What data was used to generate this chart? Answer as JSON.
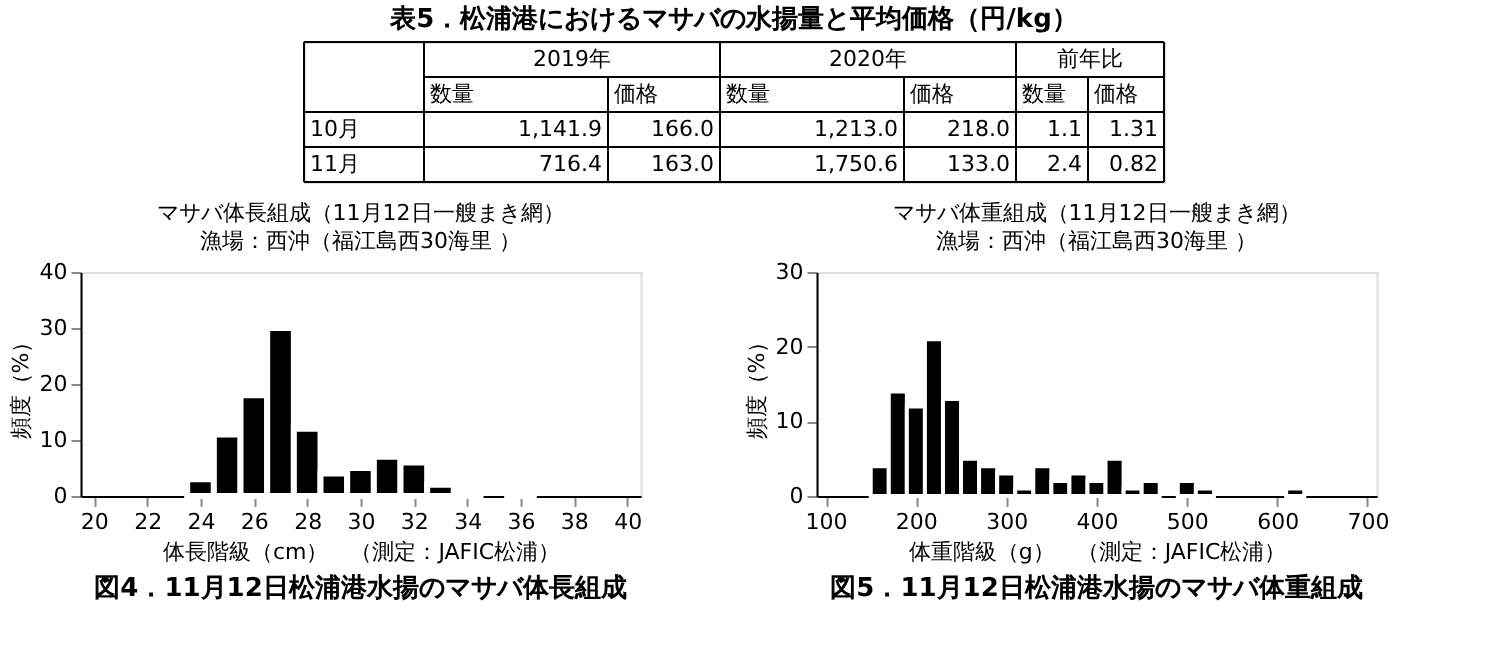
{
  "chart_data": [
    {
      "type": "other",
      "title": "表5．松浦港におけるマサバの水揚量と平均価格（円/kg）",
      "annotations": [
        "2019年",
        "2020年",
        "前年比",
        "数量",
        "価格",
        "数量",
        "価格",
        "数量",
        "価格",
        "10月",
        "1,141.9",
        "166.0",
        "1,213.0",
        "218.0",
        "1.1",
        "1.31",
        "11月",
        "716.4",
        "163.0",
        "1,750.6",
        "133.0",
        "2.4",
        "0.82"
      ]
    },
    {
      "type": "histogram",
      "title": "マサバ体長組成（11月12日一艘まき網）",
      "subtitle": "漁場：西沖（福江島西30海里 ）",
      "xlabel": "体長階級（cm）　（測定：JAFIC松浦）",
      "ylabel": "頻度（%）",
      "bins": [
        19.5,
        20.5,
        21.5,
        22.5,
        23.5,
        24.5,
        25.5,
        26.5,
        27.5,
        28.5,
        29.5,
        30.5,
        31.5,
        32.5,
        33.5,
        34.5,
        35.5,
        36.5,
        37.5,
        38.5,
        39.5,
        40.5
      ],
      "values": [
        0,
        0,
        0,
        0,
        3,
        11,
        18,
        30,
        12,
        4,
        5,
        7,
        6,
        2,
        1,
        0,
        1,
        0,
        0,
        0,
        0
      ],
      "color": "#000000",
      "xlim": [
        19.5,
        40.5
      ],
      "xticks": [
        20,
        22,
        24,
        26,
        28,
        30,
        32,
        34,
        36,
        38,
        40
      ],
      "ylim": [
        0,
        40
      ],
      "yticks": [
        0,
        10,
        20,
        30,
        40
      ],
      "grid": false,
      "annotations": [
        "図4．11月12日松浦港水揚のマサバ体長組成"
      ]
    },
    {
      "type": "histogram",
      "title": "マサバ体重組成（11月12日一艘まき網）",
      "subtitle": "漁場：西沖（福江島西30海里 ）",
      "xlabel": "体重階級（g）　（測定：JAFIC松浦）",
      "ylabel": "頻度（%）",
      "bins": [
        90,
        110,
        130,
        150,
        170,
        190,
        210,
        230,
        250,
        270,
        290,
        310,
        330,
        350,
        370,
        390,
        410,
        430,
        450,
        470,
        490,
        510,
        530,
        550,
        570,
        590,
        610,
        630,
        650,
        670,
        690,
        710
      ],
      "values": [
        0,
        0,
        0,
        4,
        14,
        12,
        21,
        13,
        5,
        4,
        3,
        1,
        4,
        2,
        3,
        2,
        5,
        1,
        2,
        0,
        2,
        1,
        0,
        0,
        0,
        0,
        1,
        0,
        0,
        0,
        0
      ],
      "color": "#000000",
      "xlim": [
        90,
        710
      ],
      "xticks": [
        100,
        200,
        300,
        400,
        500,
        600,
        700
      ],
      "ylim": [
        0,
        30
      ],
      "yticks": [
        0,
        10,
        20,
        30
      ],
      "grid": false,
      "annotations": [
        "図5．11月12日松浦港水揚のマサバ体重組成"
      ]
    }
  ]
}
